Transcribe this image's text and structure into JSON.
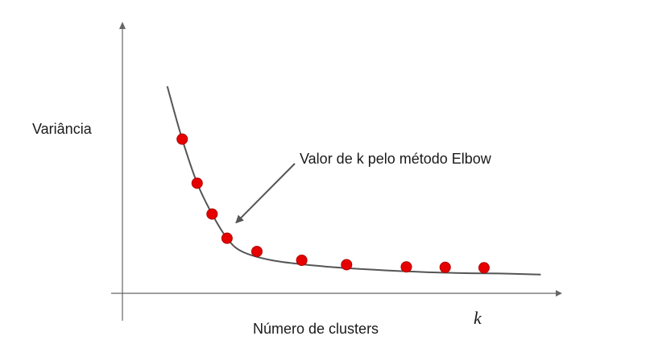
{
  "chart_data": {
    "type": "line",
    "xlabel": "Número de clusters",
    "ylabel": "Variância",
    "x_axis_symbol": "k",
    "annotation": "Valor de k pelo método Elbow",
    "grid": false,
    "legend": "none",
    "series": [
      {
        "points": [
          {
            "x": 1.5,
            "y": 9.4
          },
          {
            "x": 2,
            "y": 7.0
          },
          {
            "x": 2.5,
            "y": 5.0
          },
          {
            "x": 3,
            "y": 3.6
          },
          {
            "x": 3.5,
            "y": 2.5
          },
          {
            "x": 4,
            "y": 1.9
          },
          {
            "x": 5,
            "y": 1.5
          },
          {
            "x": 6.5,
            "y": 1.25
          },
          {
            "x": 8,
            "y": 1.1
          },
          {
            "x": 10,
            "y": 0.97
          },
          {
            "x": 11.3,
            "y": 0.92
          },
          {
            "x": 12.6,
            "y": 0.9
          },
          {
            "x": 14,
            "y": 0.85
          }
        ]
      }
    ],
    "markers": [
      {
        "x": 2,
        "y": 7.0
      },
      {
        "x": 2.5,
        "y": 5.0
      },
      {
        "x": 3,
        "y": 3.6
      },
      {
        "x": 3.5,
        "y": 2.5
      },
      {
        "x": 4.5,
        "y": 1.9
      },
      {
        "x": 6,
        "y": 1.5
      },
      {
        "x": 7.5,
        "y": 1.3
      },
      {
        "x": 9.5,
        "y": 1.2
      },
      {
        "x": 10.8,
        "y": 1.18
      },
      {
        "x": 12.1,
        "y": 1.16
      }
    ],
    "annotation_target": {
      "x": 3.8,
      "y": 3.2
    },
    "xlim": [
      0,
      14.5
    ],
    "ylim": [
      0,
      12
    ],
    "colors": {
      "line": "#555555",
      "marker": "#e60000",
      "marker_edge": "#b00000",
      "axis": "#666666"
    }
  }
}
